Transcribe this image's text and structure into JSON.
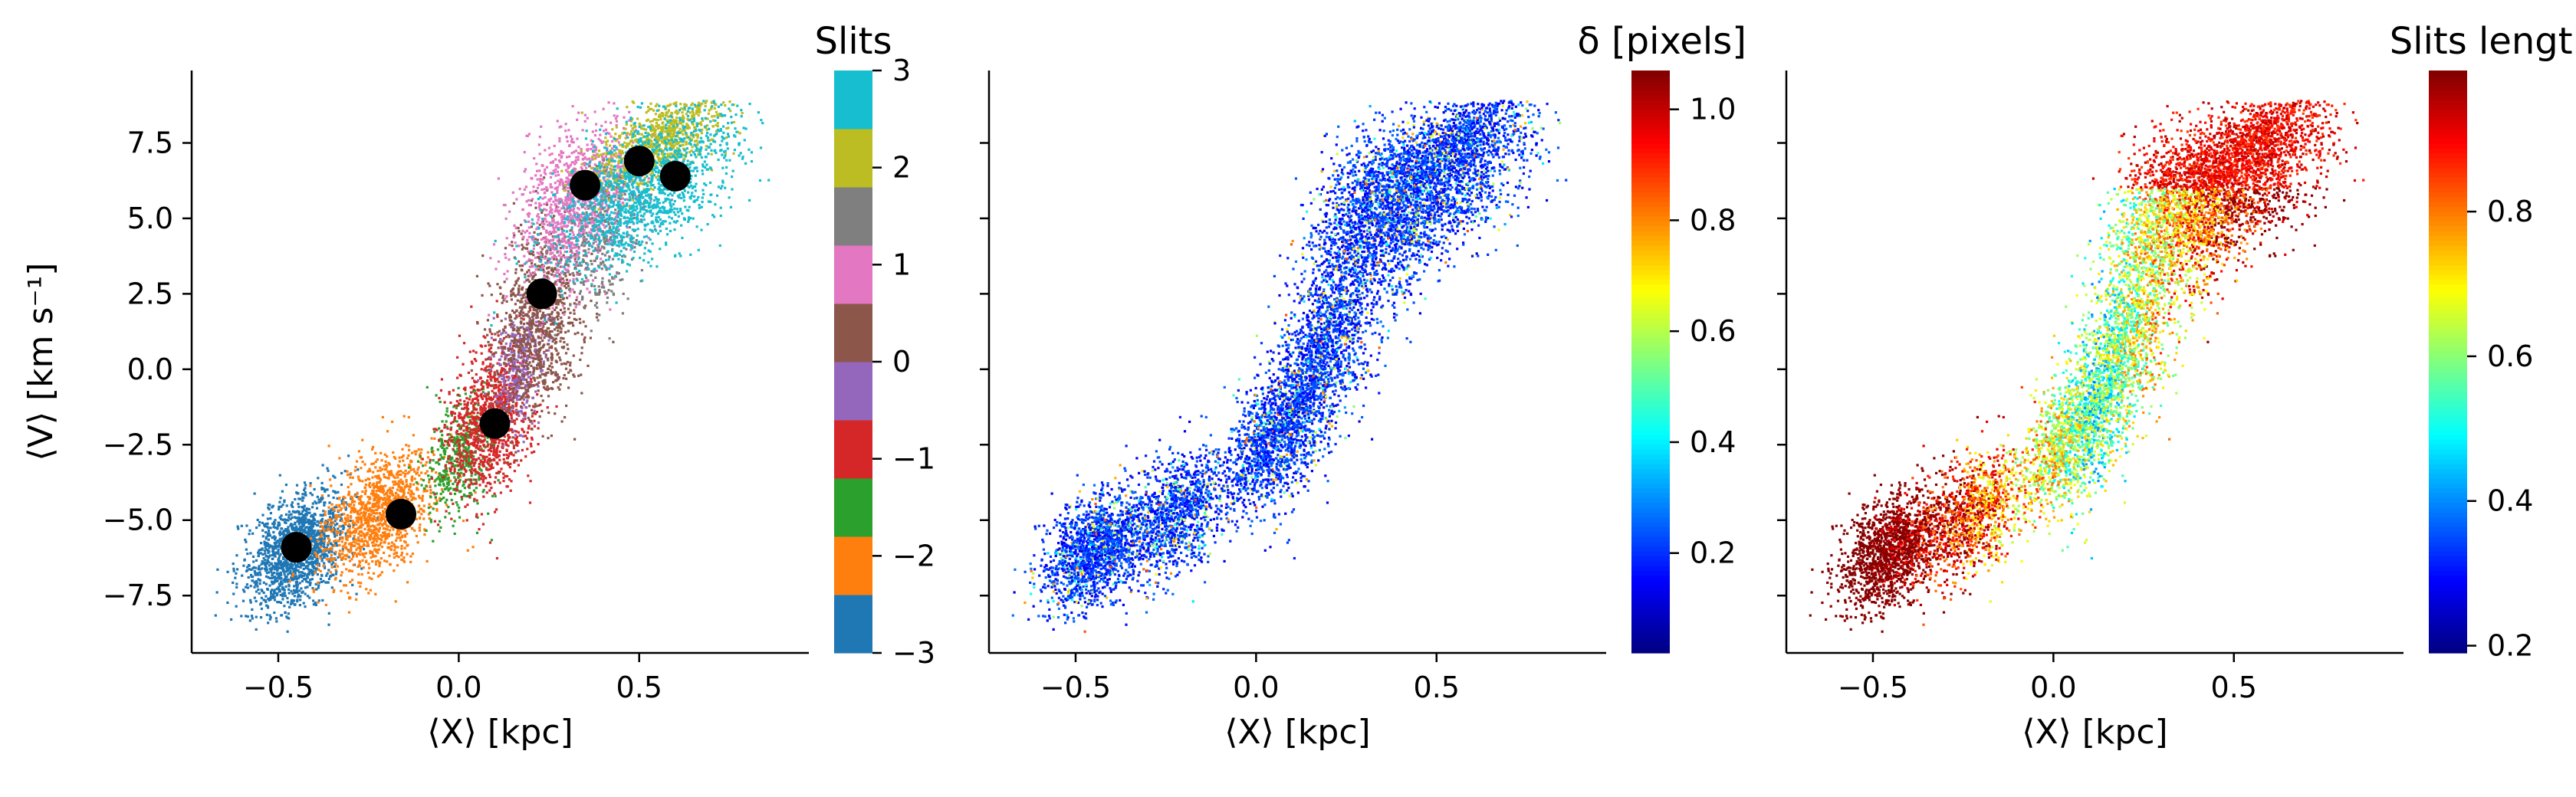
{
  "chart_data": [
    {
      "type": "scatter",
      "xlabel": "⟨X⟩ [kpc]",
      "ylabel": "⟨V⟩ [km s⁻¹]",
      "xlim": [
        -0.74,
        0.97
      ],
      "ylim": [
        -9.4,
        9.9
      ],
      "xticks": [
        -0.5,
        0.0,
        0.5
      ],
      "xtick_labels": [
        "−0.5",
        "0.0",
        "0.5"
      ],
      "yticks": [
        -7.5,
        -5.0,
        -2.5,
        0.0,
        2.5,
        5.0,
        7.5
      ],
      "ytick_labels": [
        "−7.5",
        "−5.0",
        "−2.5",
        "0.0",
        "2.5",
        "5.0",
        "7.5"
      ],
      "color_by": "slit",
      "colorbar": {
        "title": "Slits",
        "type": "discrete",
        "range": [
          -3,
          3
        ],
        "ticks": [
          -3,
          -2,
          -1,
          0,
          1,
          2,
          3
        ],
        "tick_labels": [
          "−3",
          "−2",
          "−1",
          "0",
          "1",
          "2",
          "3"
        ],
        "colors": [
          "#1f77b4",
          "#ff7f0e",
          "#2ca02c",
          "#d62728",
          "#9467bd",
          "#8c564b",
          "#e377c2",
          "#7f7f7f",
          "#bcbd22",
          "#17becf"
        ]
      },
      "slit_centers": {
        "x": [
          -0.45,
          -0.16,
          0.1,
          0.23,
          0.35,
          0.5,
          0.6
        ],
        "y": [
          -5.9,
          -4.8,
          -1.8,
          2.5,
          6.1,
          6.9,
          6.4
        ]
      }
    },
    {
      "type": "scatter",
      "xlabel": "⟨X⟩ [kpc]",
      "ylabel": "",
      "xlim": [
        -0.74,
        0.97
      ],
      "ylim": [
        -9.4,
        9.9
      ],
      "xticks": [
        -0.5,
        0.0,
        0.5
      ],
      "xtick_labels": [
        "−0.5",
        "0.0",
        "0.5"
      ],
      "color_by": "delta",
      "colorbar": {
        "title": "δ [pixels]",
        "type": "jet",
        "range": [
          0.02,
          1.07
        ],
        "ticks": [
          0.2,
          0.4,
          0.6,
          0.8,
          1.0
        ],
        "tick_labels": [
          "0.2",
          "0.4",
          "0.6",
          "0.8",
          "1.0"
        ]
      }
    },
    {
      "type": "scatter",
      "xlabel": "⟨X⟩ [kpc]",
      "ylabel": "",
      "xlim": [
        -0.74,
        0.97
      ],
      "ylim": [
        -9.4,
        9.9
      ],
      "xticks": [
        -0.5,
        0.0,
        0.5
      ],
      "xtick_labels": [
        "−0.5",
        "0.0",
        "0.5"
      ],
      "color_by": "slit_length",
      "colorbar": {
        "title": "Slits length",
        "type": "jet",
        "range": [
          0.19,
          0.995
        ],
        "ticks": [
          0.2,
          0.4,
          0.6,
          0.8
        ],
        "tick_labels": [
          "0.2",
          "0.4",
          "0.6",
          "0.8"
        ]
      }
    }
  ]
}
